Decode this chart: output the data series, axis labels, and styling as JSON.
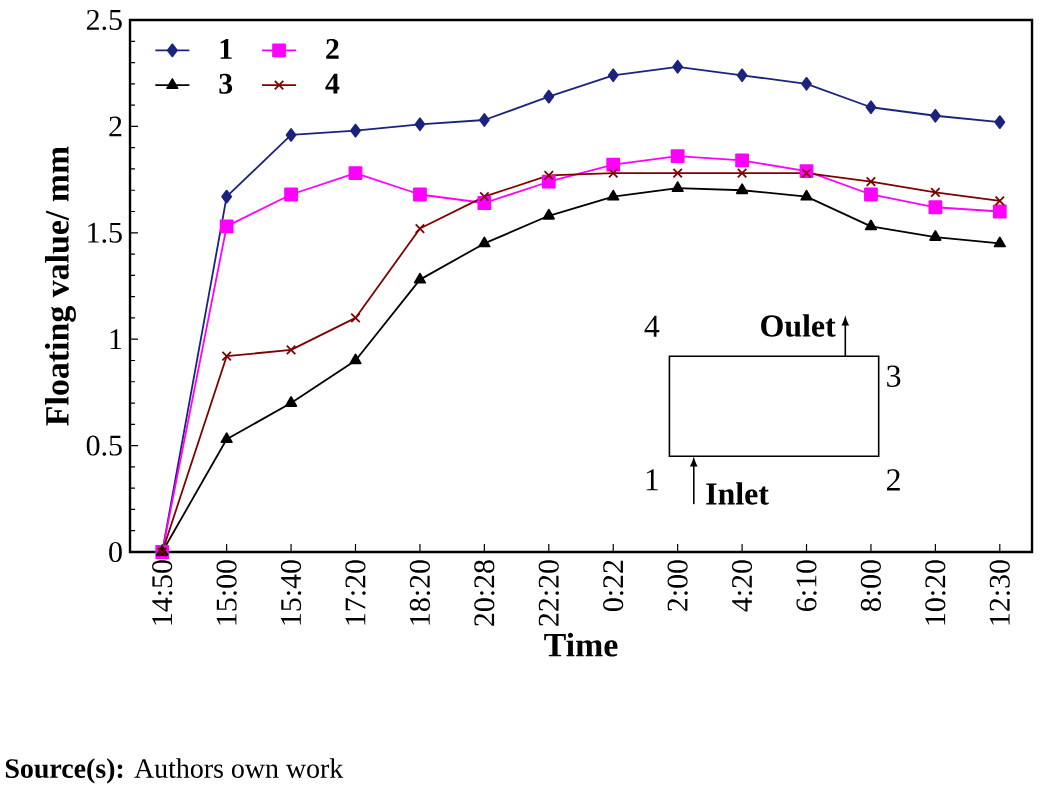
{
  "chart_data": {
    "type": "line",
    "xlabel": "Time",
    "ylabel": "Floating value/ mm",
    "categories": [
      "14:50",
      "15:00",
      "15:40",
      "17:20",
      "18:20",
      "20:28",
      "22:20",
      "0:22",
      "2:00",
      "4:20",
      "6:10",
      "8:00",
      "10:20",
      "12:30"
    ],
    "series": [
      {
        "name": "1",
        "color": "#1a237e",
        "marker": "diamond",
        "values": [
          0,
          1.67,
          1.96,
          1.98,
          2.01,
          2.03,
          2.14,
          2.24,
          2.28,
          2.24,
          2.2,
          2.09,
          2.05,
          2.02
        ]
      },
      {
        "name": "2",
        "color": "#ff00ff",
        "marker": "square",
        "values": [
          0,
          1.53,
          1.68,
          1.78,
          1.68,
          1.64,
          1.74,
          1.82,
          1.86,
          1.84,
          1.79,
          1.68,
          1.62,
          1.6
        ]
      },
      {
        "name": "3",
        "color": "#000000",
        "marker": "triangle",
        "values": [
          0,
          0.53,
          0.7,
          0.9,
          1.28,
          1.45,
          1.58,
          1.67,
          1.71,
          1.7,
          1.67,
          1.53,
          1.48,
          1.45
        ]
      },
      {
        "name": "4",
        "color": "#800000",
        "marker": "cross",
        "values": [
          0,
          0.92,
          0.95,
          1.1,
          1.52,
          1.67,
          1.77,
          1.78,
          1.78,
          1.78,
          1.78,
          1.74,
          1.69,
          1.65
        ]
      }
    ],
    "ylim": [
      0,
      2.5
    ],
    "yticks": [
      0,
      0.5,
      1,
      1.5,
      2,
      2.5
    ],
    "legend": "top left",
    "line_style": "solid",
    "annotations": [
      "4",
      "Oulet",
      "3",
      "1",
      "Inlet",
      "2",
      "**Source(s):** Authors own work"
    ]
  }
}
